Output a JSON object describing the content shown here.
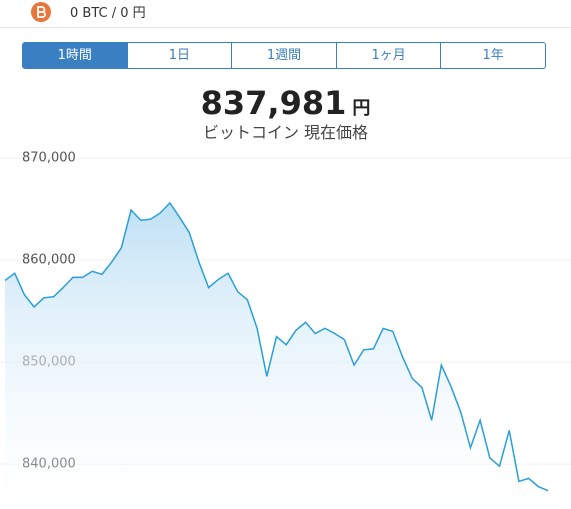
{
  "header": {
    "balance": "0 BTC / 0 円"
  },
  "tabs": [
    "1時間",
    "1日",
    "1週間",
    "1ヶ月",
    "1年"
  ],
  "price": {
    "amount": "837,981",
    "unit": "円",
    "caption": "ビットコイン 現在価格"
  },
  "chart_data": {
    "type": "area",
    "color": "#2a9fd8",
    "grid": true,
    "ylim": [
      835600,
      870000
    ],
    "yticks": [
      {
        "value": 870000,
        "label": "870,000"
      },
      {
        "value": 860000,
        "label": "860,000"
      },
      {
        "value": 850000,
        "label": "850,000"
      },
      {
        "value": 840000,
        "label": "840,000"
      }
    ],
    "values": [
      858000,
      858700,
      856600,
      855400,
      856300,
      856400,
      857300,
      858300,
      858300,
      858900,
      858600,
      859800,
      861200,
      864900,
      863900,
      864000,
      864600,
      865600,
      864200,
      862700,
      859800,
      857300,
      858100,
      858700,
      856900,
      856100,
      853300,
      848600,
      852500,
      851700,
      853100,
      853900,
      852800,
      853300,
      852800,
      852200,
      849700,
      851200,
      851300,
      853300,
      853000,
      850500,
      848400,
      847500,
      844300,
      849700,
      847600,
      845100,
      841600,
      844300,
      840600,
      839800,
      843300,
      838300,
      838600,
      837800,
      837400
    ]
  }
}
